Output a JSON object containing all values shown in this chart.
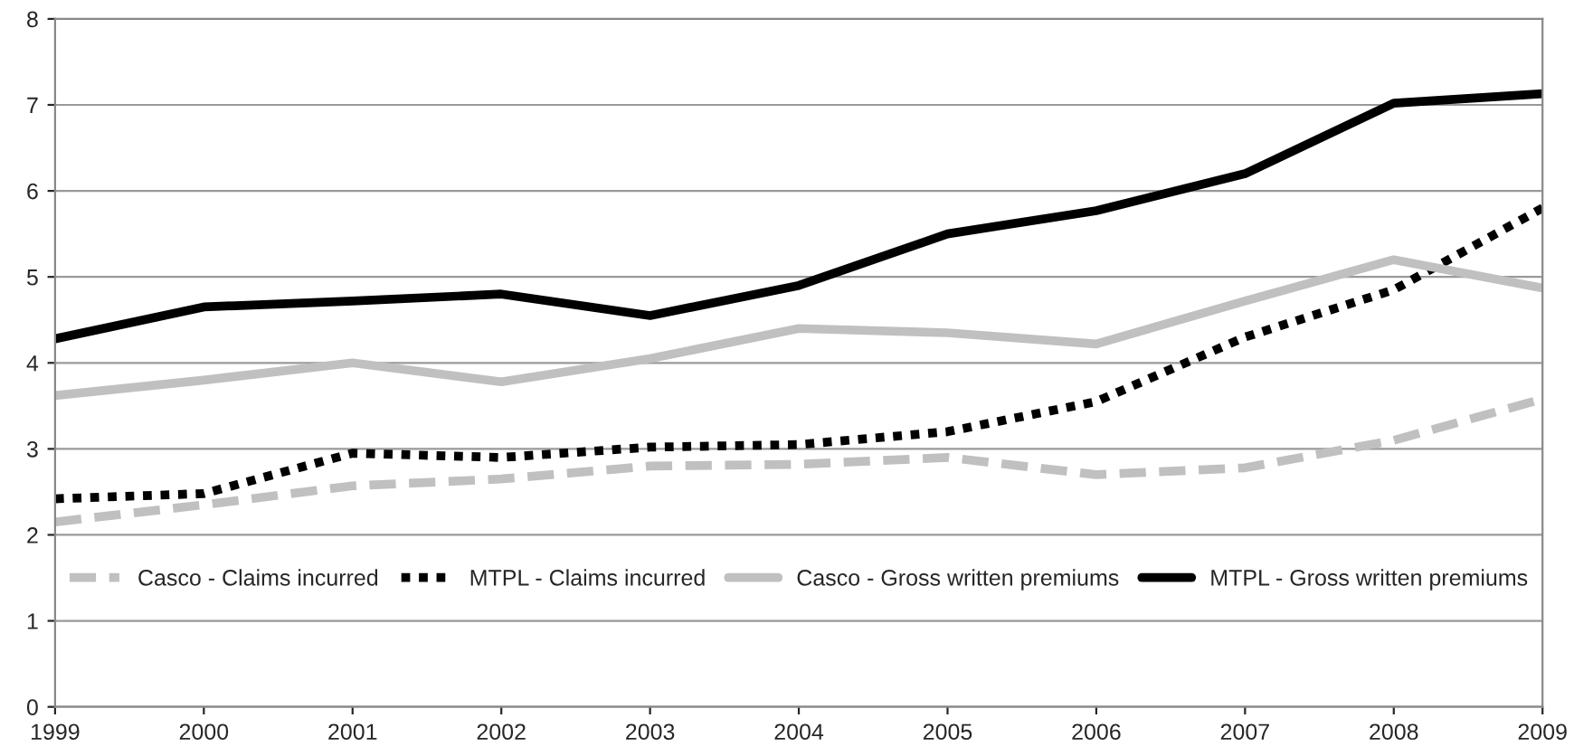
{
  "chart_data": {
    "type": "line",
    "x": [
      1999,
      2000,
      2001,
      2002,
      2003,
      2004,
      2005,
      2006,
      2007,
      2008,
      2009
    ],
    "series": [
      {
        "name": "Casco - Claims incurred",
        "color": "#c0c0c0",
        "line_style": "dashed",
        "values": [
          2.15,
          2.35,
          2.57,
          2.65,
          2.8,
          2.82,
          2.9,
          2.7,
          2.78,
          3.1,
          3.58
        ]
      },
      {
        "name": "MTPL - Claims incurred",
        "color": "#000000",
        "line_style": "dotted",
        "values": [
          2.42,
          2.48,
          2.95,
          2.9,
          3.02,
          3.05,
          3.2,
          3.55,
          4.3,
          4.85,
          5.8
        ]
      },
      {
        "name": "Casco - Gross written premiums",
        "color": "#c0c0c0",
        "line_style": "solid",
        "values": [
          3.62,
          3.8,
          4.0,
          3.78,
          4.05,
          4.4,
          4.35,
          4.22,
          4.72,
          5.2,
          4.87
        ]
      },
      {
        "name": "MTPL - Gross written premiums",
        "color": "#000000",
        "line_style": "solid",
        "values": [
          4.28,
          4.65,
          4.72,
          4.8,
          4.55,
          4.9,
          5.5,
          5.77,
          6.2,
          7.02,
          7.13
        ]
      }
    ],
    "xlim": [
      1999,
      2009
    ],
    "xticks": [
      1999,
      2000,
      2001,
      2002,
      2003,
      2004,
      2005,
      2006,
      2007,
      2008,
      2009
    ],
    "ylim": [
      0,
      8
    ],
    "yticks": [
      0,
      1,
      2,
      3,
      4,
      5,
      6,
      7,
      8
    ],
    "grid": "y",
    "legend": "bottom",
    "marker": "none"
  }
}
